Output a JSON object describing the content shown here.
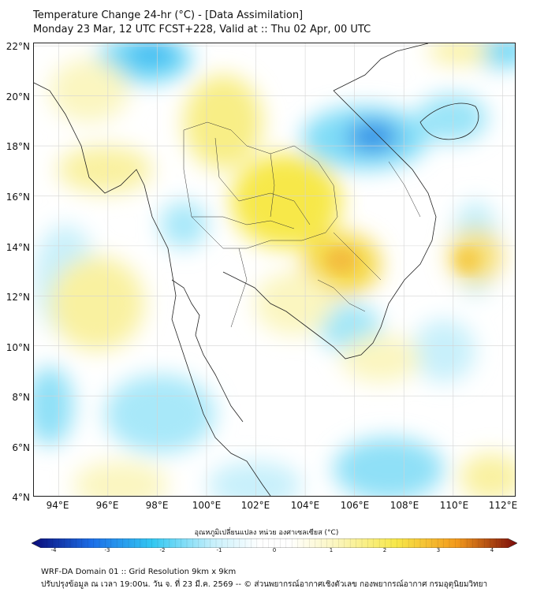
{
  "header": {
    "title_line1": "Temperature Change 24-hr (°C) - [Data Assimilation]",
    "title_line2": "Monday 23 Mar, 12 UTC FCST+228, Valid at :: Thu 02 Apr, 00 UTC"
  },
  "map": {
    "lat_labels": [
      "22°N",
      "20°N",
      "18°N",
      "16°N",
      "14°N",
      "12°N",
      "10°N",
      "8°N",
      "6°N",
      "4°N"
    ],
    "lon_labels": [
      "94°E",
      "96°E",
      "98°E",
      "100°E",
      "102°E",
      "104°E",
      "106°E",
      "108°E",
      "110°E",
      "112°E"
    ],
    "lat_range": [
      4,
      22.1
    ],
    "lon_range": [
      93,
      112.5
    ]
  },
  "colorbar": {
    "label": "อุณหภูมิเปลี่ยนแปลง หน่วย องศาเซลเซียส (°C)",
    "ticks": [
      "-4",
      "-3",
      "-2",
      "-1",
      "0",
      "1",
      "2",
      "3",
      "4"
    ],
    "colors": {
      "cold_dark": "#0a0a78",
      "cold_blue": "#1c6fe8",
      "cyan": "#33c8f2",
      "light_cyan": "#c8f0fb",
      "white": "#ffffff",
      "light_yellow": "#fbf6c0",
      "yellow": "#f7e84a",
      "orange": "#f39a1c",
      "red": "#d7191c",
      "warm_dark": "#7a0a0a"
    }
  },
  "footer": {
    "line1": "WRF-DA Domain 01 :: Grid Resolution 9km x 9km",
    "line2": "ปรับปรุงข้อมูล ณ เวลา 19:00น. วัน จ. ที่ 23 มี.ค. 2569 -- © ส่วนพยากรณ์อากาศเชิงตัวเลข กองพยากรณ์อากาศ กรมอุตุนิยมวิทยา"
  }
}
